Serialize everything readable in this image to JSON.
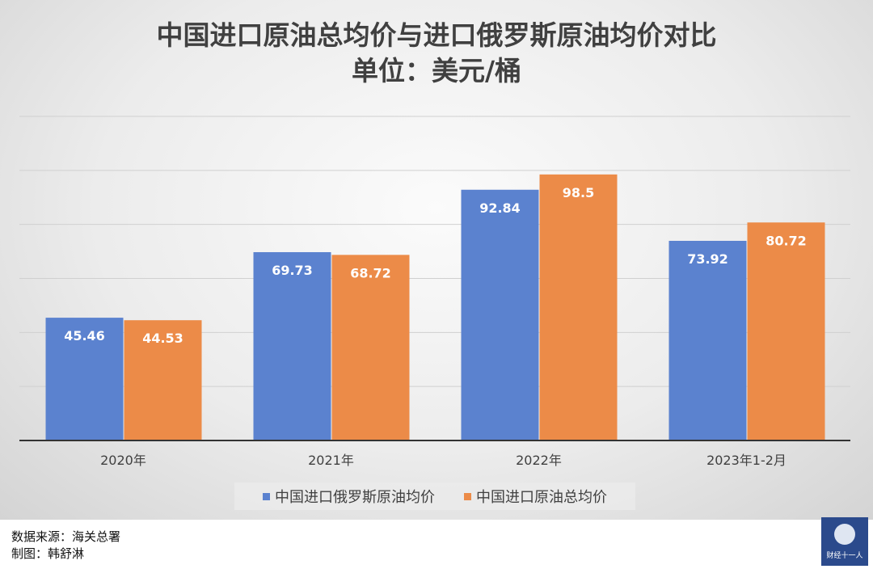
{
  "chart_data": {
    "type": "bar",
    "title": "中国进口原油总均价与进口俄罗斯原油均价对比",
    "subtitle": "单位：美元/桶",
    "categories": [
      "2020年",
      "2021年",
      "2022年",
      "2023年1-2月"
    ],
    "series": [
      {
        "name": "中国进口俄罗斯原油均价",
        "values": [
          45.46,
          69.73,
          92.84,
          73.92
        ],
        "color": "#5B82CF"
      },
      {
        "name": "中国进口原油总均价",
        "values": [
          44.53,
          68.72,
          98.5,
          80.72
        ],
        "color": "#EC8B48"
      }
    ],
    "ylim": [
      0,
      120
    ],
    "grid": true,
    "grid_step": 20,
    "legend": "bottom"
  },
  "footer": {
    "source": "数据来源：海关总署",
    "author": "制图：韩舒淋"
  },
  "logo": {
    "text": "财经十一人"
  }
}
